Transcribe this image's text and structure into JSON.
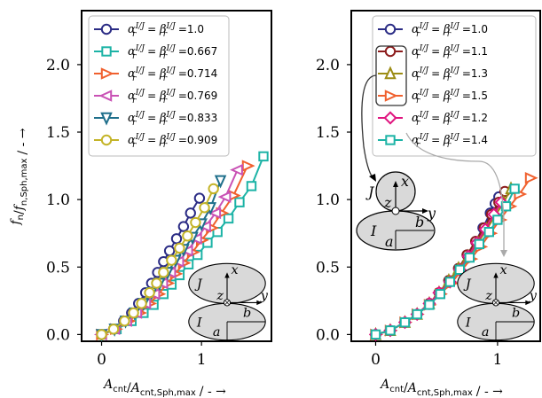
{
  "chart_data": [
    {
      "type": "line",
      "xlabel": "A_cnt/A_cnt,Sph,max / - →",
      "ylabel": "f_n/f_n,Sph,max / - →",
      "xlim": [
        -0.2,
        1.7
      ],
      "ylim": [
        -0.05,
        2.4
      ],
      "xticks": [
        "0",
        "1"
      ],
      "yticks": [
        "0.0",
        "0.5",
        "1.0",
        "1.5",
        "2.0"
      ],
      "legend_placement": "top",
      "legend_prefix": "α_r^{I/J} = β_r^{I/J} =",
      "series": [
        {
          "name": "1.0",
          "color": "#2b2c85",
          "marker": "circle",
          "x": [
            0,
            0.12,
            0.22,
            0.3,
            0.37,
            0.44,
            0.5,
            0.56,
            0.62,
            0.68,
            0.75,
            0.82,
            0.89,
            0.98
          ],
          "y": [
            0,
            0.04,
            0.1,
            0.16,
            0.23,
            0.31,
            0.38,
            0.46,
            0.54,
            0.62,
            0.71,
            0.8,
            0.9,
            1.01
          ]
        },
        {
          "name": "0.667",
          "color": "#1cb3a6",
          "marker": "square",
          "x": [
            0,
            0.15,
            0.3,
            0.42,
            0.52,
            0.62,
            0.7,
            0.78,
            0.87,
            0.96,
            1.06,
            1.16,
            1.27,
            1.38,
            1.5,
            1.62
          ],
          "y": [
            0,
            0.04,
            0.1,
            0.16,
            0.22,
            0.3,
            0.37,
            0.44,
            0.52,
            0.59,
            0.68,
            0.76,
            0.86,
            0.98,
            1.1,
            1.32
          ]
        },
        {
          "name": "0.714",
          "color": "#f0602e",
          "marker": "triangle-right",
          "x": [
            0,
            0.14,
            0.27,
            0.38,
            0.48,
            0.57,
            0.66,
            0.74,
            0.82,
            0.91,
            1.0,
            1.1,
            1.2,
            1.32,
            1.46
          ],
          "y": [
            0,
            0.04,
            0.1,
            0.16,
            0.23,
            0.3,
            0.38,
            0.45,
            0.53,
            0.61,
            0.7,
            0.79,
            0.9,
            1.03,
            1.25
          ]
        },
        {
          "name": "0.769",
          "color": "#c952b5",
          "marker": "triangle-left",
          "x": [
            0,
            0.13,
            0.25,
            0.35,
            0.44,
            0.53,
            0.61,
            0.69,
            0.77,
            0.86,
            0.95,
            1.04,
            1.14,
            1.24,
            1.36
          ],
          "y": [
            0,
            0.04,
            0.1,
            0.16,
            0.23,
            0.3,
            0.38,
            0.46,
            0.54,
            0.62,
            0.71,
            0.8,
            0.9,
            1.02,
            1.22
          ]
        },
        {
          "name": "0.833",
          "color": "#1f6f8b",
          "marker": "triangle-down",
          "x": [
            0,
            0.13,
            0.24,
            0.33,
            0.42,
            0.5,
            0.58,
            0.66,
            0.74,
            0.82,
            0.91,
            1.0,
            1.09,
            1.19
          ],
          "y": [
            0,
            0.04,
            0.1,
            0.16,
            0.23,
            0.31,
            0.38,
            0.46,
            0.55,
            0.63,
            0.72,
            0.82,
            0.94,
            1.14
          ]
        },
        {
          "name": "0.909",
          "color": "#c4b428",
          "marker": "circle",
          "x": [
            0,
            0.12,
            0.23,
            0.32,
            0.4,
            0.48,
            0.55,
            0.62,
            0.7,
            0.78,
            0.86,
            0.94,
            1.03,
            1.12
          ],
          "y": [
            0,
            0.04,
            0.1,
            0.16,
            0.23,
            0.31,
            0.38,
            0.46,
            0.55,
            0.64,
            0.73,
            0.83,
            0.94,
            1.08
          ]
        }
      ]
    },
    {
      "type": "line",
      "xlabel": "A_cnt/A_cnt,Sph,max / - →",
      "ylabel": "",
      "xlim": [
        -0.2,
        1.35
      ],
      "ylim": [
        -0.05,
        2.4
      ],
      "xticks": [
        "0",
        "1"
      ],
      "yticks": [
        "0.0",
        "0.5",
        "1.0",
        "1.5",
        "2.0"
      ],
      "legend_placement": "top",
      "legend_prefix": "α_r^{I/J} = β_r^{I/J} =",
      "series": [
        {
          "name": "1.0",
          "color": "#2b2c85",
          "marker": "circle",
          "x": [
            0,
            0.12,
            0.24,
            0.34,
            0.44,
            0.52,
            0.6,
            0.68,
            0.75,
            0.82,
            0.88,
            0.94,
            0.98,
            1.01
          ],
          "y": [
            0,
            0.03,
            0.09,
            0.15,
            0.23,
            0.31,
            0.4,
            0.49,
            0.59,
            0.69,
            0.79,
            0.9,
            0.97,
            1.02
          ]
        },
        {
          "name": "1.1",
          "color": "#8c1c1c",
          "marker": "circle",
          "x": [
            0,
            0.12,
            0.24,
            0.34,
            0.44,
            0.52,
            0.6,
            0.68,
            0.75,
            0.82,
            0.89,
            0.95,
            1.01,
            1.06
          ],
          "y": [
            0,
            0.03,
            0.09,
            0.15,
            0.23,
            0.31,
            0.4,
            0.49,
            0.59,
            0.69,
            0.79,
            0.89,
            0.98,
            1.06
          ]
        },
        {
          "name": "1.3",
          "color": "#9c8c14",
          "marker": "triangle-up",
          "x": [
            0,
            0.12,
            0.24,
            0.34,
            0.44,
            0.52,
            0.6,
            0.68,
            0.76,
            0.84,
            0.91,
            0.98,
            1.05,
            1.11
          ],
          "y": [
            0,
            0.03,
            0.09,
            0.15,
            0.23,
            0.31,
            0.4,
            0.49,
            0.58,
            0.68,
            0.78,
            0.88,
            0.98,
            1.08
          ]
        },
        {
          "name": "1.5",
          "color": "#f0602e",
          "marker": "triangle-right",
          "x": [
            0,
            0.12,
            0.24,
            0.34,
            0.44,
            0.53,
            0.62,
            0.7,
            0.78,
            0.86,
            0.94,
            1.02,
            1.1,
            1.18,
            1.27
          ],
          "y": [
            0,
            0.03,
            0.09,
            0.15,
            0.22,
            0.3,
            0.38,
            0.47,
            0.56,
            0.65,
            0.75,
            0.85,
            0.95,
            1.04,
            1.16
          ]
        },
        {
          "name": "1.2",
          "color": "#e0157f",
          "marker": "diamond",
          "x": [
            0,
            0.12,
            0.24,
            0.34,
            0.44,
            0.52,
            0.61,
            0.69,
            0.76,
            0.83,
            0.9,
            0.97,
            1.03
          ],
          "y": [
            0,
            0.03,
            0.09,
            0.15,
            0.23,
            0.31,
            0.39,
            0.48,
            0.58,
            0.68,
            0.78,
            0.89,
            0.98
          ]
        },
        {
          "name": "1.4",
          "color": "#1cb3a6",
          "marker": "square",
          "x": [
            0,
            0.12,
            0.24,
            0.34,
            0.44,
            0.53,
            0.61,
            0.69,
            0.77,
            0.85,
            0.93,
            1.0,
            1.07,
            1.14
          ],
          "y": [
            0,
            0.03,
            0.09,
            0.15,
            0.22,
            0.3,
            0.39,
            0.48,
            0.57,
            0.67,
            0.76,
            0.85,
            0.95,
            1.08
          ]
        }
      ]
    }
  ],
  "diagram_labels": {
    "x": "x",
    "y": "y",
    "z": "z",
    "I": "I",
    "J": "J",
    "a": "a",
    "b": "b"
  }
}
